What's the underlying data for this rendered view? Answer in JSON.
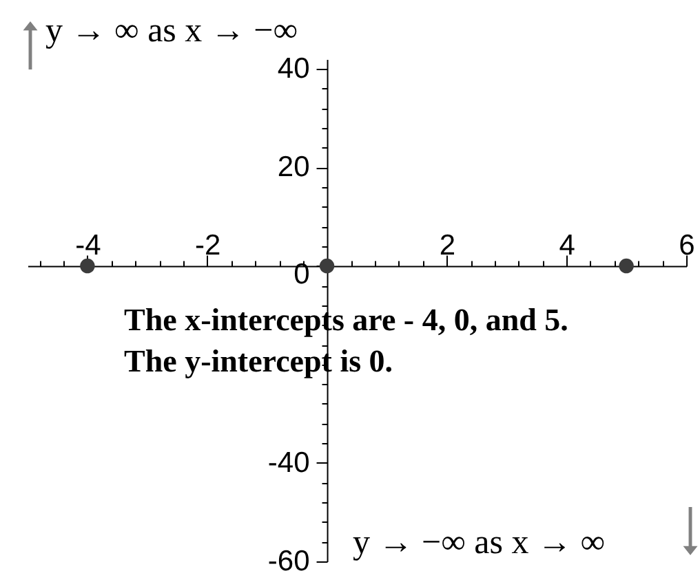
{
  "chart_data": {
    "type": "scatter",
    "x": [
      -4,
      0,
      5
    ],
    "values": [
      0,
      0,
      0
    ],
    "color": "#3c3c3c",
    "marker": "circle",
    "grid": false,
    "xlim": [
      -5,
      6
    ],
    "ylim": [
      -60,
      42
    ],
    "xticks": [
      {
        "value": -4.8,
        "label": null
      },
      {
        "value": -4.4,
        "label": null
      },
      -4,
      {
        "value": -3.6,
        "label": null
      },
      {
        "value": -3.2,
        "label": null
      },
      {
        "value": -2.8,
        "label": null
      },
      {
        "value": -2.4,
        "label": null
      },
      -2,
      {
        "value": -1.6,
        "label": null
      },
      {
        "value": -1.2,
        "label": null
      },
      {
        "value": -0.8,
        "label": null
      },
      {
        "value": -0.4,
        "label": null
      },
      {
        "value": 0,
        "label": null
      },
      {
        "value": 0.4,
        "label": null
      },
      {
        "value": 0.8,
        "label": null
      },
      {
        "value": 1.2,
        "label": null
      },
      {
        "value": 1.6,
        "label": null
      },
      2,
      {
        "value": 2.4,
        "label": null
      },
      {
        "value": 2.8,
        "label": null
      },
      {
        "value": 3.2,
        "label": null
      },
      {
        "value": 3.6,
        "label": null
      },
      4,
      {
        "value": 4.4,
        "label": null
      },
      {
        "value": 4.8,
        "label": null
      },
      {
        "value": 5.2,
        "label": null
      },
      {
        "value": 5.6,
        "label": null
      },
      6
    ],
    "yticks": [
      -60,
      {
        "value": -56,
        "label": null
      },
      {
        "value": -52,
        "label": null
      },
      {
        "value": -48,
        "label": null
      },
      {
        "value": -44,
        "label": null
      },
      -40,
      {
        "value": -36,
        "label": null
      },
      {
        "value": -32,
        "label": null
      },
      {
        "value": -28,
        "label": null
      },
      {
        "value": -24,
        "label": null
      },
      {
        "value": -20,
        "label": null
      },
      {
        "value": -16,
        "label": null
      },
      {
        "value": -12,
        "label": null
      },
      {
        "value": -8,
        "label": null
      },
      {
        "value": -4,
        "label": null
      },
      0,
      {
        "value": 4,
        "label": null
      },
      {
        "value": 8,
        "label": null
      },
      {
        "value": 12,
        "label": null
      },
      {
        "value": 16,
        "label": null
      },
      20,
      {
        "value": 24,
        "label": null
      },
      {
        "value": 28,
        "label": null
      },
      {
        "value": 32,
        "label": null
      },
      {
        "value": 36,
        "label": null
      },
      40
    ],
    "annotations": [
      "y → ∞ as x → −∞",
      "The x-intercepts are - 4, 0, and 5.",
      "The y-intercept is 0.",
      "y → −∞ as x → ∞"
    ]
  }
}
